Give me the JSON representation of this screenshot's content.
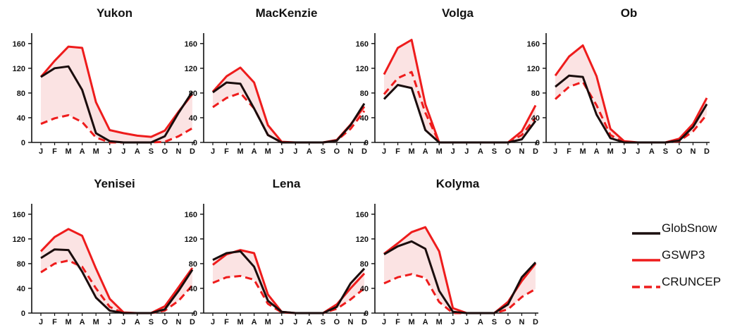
{
  "colors": {
    "globsnow": "#1a0d0d",
    "gswp3": "#ee1c1c",
    "cruncep": "#ee1c1c",
    "envelope": "#fbe3e3"
  },
  "legend": {
    "placement": "bottom-right",
    "items": [
      {
        "label": "GlobSnow",
        "style": "solid-black"
      },
      {
        "label": "GSWP3",
        "style": "solid-red"
      },
      {
        "label": "CRUNCEP",
        "style": "dashed-red"
      }
    ]
  },
  "chart_data": [
    {
      "type": "line",
      "title": "Yukon",
      "categories": [
        "J",
        "F",
        "M",
        "A",
        "M",
        "J",
        "J",
        "A",
        "S",
        "O",
        "N",
        "D"
      ],
      "ylim": [
        0,
        170
      ],
      "yticks": [
        0,
        40,
        80,
        120,
        160
      ],
      "grid": false,
      "series": [
        {
          "name": "GlobSnow",
          "values": [
            106,
            120,
            123,
            85,
            15,
            2,
            0,
            0,
            0,
            10,
            48,
            82
          ]
        },
        {
          "name": "GSWP3",
          "values": [
            106,
            132,
            155,
            153,
            65,
            20,
            15,
            11,
            9,
            19,
            50,
            78
          ]
        },
        {
          "name": "CRUNCEP",
          "values": [
            30,
            39,
            44,
            33,
            8,
            0,
            0,
            0,
            0,
            1,
            10,
            23
          ]
        }
      ]
    },
    {
      "type": "line",
      "title": "MacKenzie",
      "categories": [
        "J",
        "F",
        "M",
        "A",
        "M",
        "J",
        "J",
        "A",
        "S",
        "O",
        "N",
        "D"
      ],
      "ylim": [
        0,
        170
      ],
      "yticks": [
        0,
        40,
        80,
        120,
        160
      ],
      "grid": false,
      "series": [
        {
          "name": "GlobSnow",
          "values": [
            81,
            97,
            95,
            55,
            12,
            0,
            0,
            0,
            0,
            3,
            28,
            63
          ]
        },
        {
          "name": "GSWP3",
          "values": [
            82,
            107,
            121,
            97,
            28,
            1,
            0,
            0,
            0,
            4,
            29,
            58
          ]
        },
        {
          "name": "CRUNCEP",
          "values": [
            57,
            72,
            80,
            55,
            12,
            0,
            0,
            0,
            0,
            3,
            22,
            51
          ]
        }
      ]
    },
    {
      "type": "line",
      "title": "Volga",
      "categories": [
        "J",
        "F",
        "M",
        "A",
        "M",
        "J",
        "J",
        "A",
        "S",
        "O",
        "N",
        "D"
      ],
      "ylim": [
        0,
        170
      ],
      "yticks": [
        0,
        40,
        80,
        120,
        160
      ],
      "grid": false,
      "series": [
        {
          "name": "GlobSnow",
          "values": [
            70,
            93,
            88,
            20,
            0,
            0,
            0,
            0,
            0,
            0,
            5,
            35
          ]
        },
        {
          "name": "GSWP3",
          "values": [
            110,
            153,
            166,
            62,
            0,
            0,
            0,
            0,
            0,
            0,
            18,
            60
          ]
        },
        {
          "name": "CRUNCEP",
          "values": [
            78,
            104,
            114,
            48,
            0,
            0,
            0,
            0,
            0,
            0,
            12,
            40
          ]
        }
      ]
    },
    {
      "type": "line",
      "title": "Ob",
      "categories": [
        "J",
        "F",
        "M",
        "A",
        "M",
        "J",
        "J",
        "A",
        "S",
        "O",
        "N",
        "D"
      ],
      "ylim": [
        0,
        170
      ],
      "yticks": [
        0,
        40,
        80,
        120,
        160
      ],
      "grid": false,
      "series": [
        {
          "name": "GlobSnow",
          "values": [
            90,
            108,
            106,
            45,
            7,
            0,
            0,
            0,
            0,
            3,
            25,
            62
          ]
        },
        {
          "name": "GSWP3",
          "values": [
            108,
            139,
            157,
            107,
            22,
            2,
            0,
            0,
            0,
            6,
            30,
            72
          ]
        },
        {
          "name": "CRUNCEP",
          "values": [
            70,
            90,
            98,
            60,
            12,
            0,
            0,
            0,
            0,
            2,
            18,
            45
          ]
        }
      ]
    },
    {
      "type": "line",
      "title": "Yenisei",
      "categories": [
        "J",
        "F",
        "M",
        "A",
        "M",
        "J",
        "J",
        "A",
        "S",
        "O",
        "N",
        "D"
      ],
      "ylim": [
        0,
        170
      ],
      "yticks": [
        0,
        40,
        80,
        120,
        160
      ],
      "grid": false,
      "series": [
        {
          "name": "GlobSnow",
          "values": [
            89,
            103,
            102,
            67,
            25,
            4,
            0,
            0,
            0,
            6,
            36,
            70
          ]
        },
        {
          "name": "GSWP3",
          "values": [
            100,
            123,
            136,
            125,
            72,
            23,
            1,
            0,
            0,
            11,
            42,
            73
          ]
        },
        {
          "name": "CRUNCEP",
          "values": [
            66,
            80,
            85,
            75,
            40,
            10,
            0,
            0,
            0,
            4,
            20,
            45
          ]
        }
      ]
    },
    {
      "type": "line",
      "title": "Lena",
      "categories": [
        "J",
        "F",
        "M",
        "A",
        "M",
        "J",
        "J",
        "A",
        "S",
        "O",
        "N",
        "D"
      ],
      "ylim": [
        0,
        170
      ],
      "yticks": [
        0,
        40,
        80,
        120,
        160
      ],
      "grid": false,
      "series": [
        {
          "name": "GlobSnow",
          "values": [
            86,
            97,
            100,
            75,
            20,
            2,
            0,
            0,
            0,
            10,
            48,
            72
          ]
        },
        {
          "name": "GSWP3",
          "values": [
            78,
            95,
            102,
            97,
            30,
            2,
            0,
            0,
            0,
            14,
            40,
            64
          ]
        },
        {
          "name": "CRUNCEP",
          "values": [
            49,
            58,
            60,
            54,
            15,
            1,
            0,
            0,
            0,
            7,
            22,
            40
          ]
        }
      ]
    },
    {
      "type": "line",
      "title": "Kolyma",
      "categories": [
        "J",
        "F",
        "M",
        "A",
        "M",
        "J",
        "J",
        "A",
        "S",
        "O",
        "N",
        "D"
      ],
      "ylim": [
        0,
        170
      ],
      "yticks": [
        0,
        40,
        80,
        120,
        160
      ],
      "grid": false,
      "series": [
        {
          "name": "GlobSnow",
          "values": [
            95,
            108,
            116,
            104,
            36,
            2,
            0,
            0,
            0,
            14,
            58,
            82
          ]
        },
        {
          "name": "GSWP3",
          "values": [
            96,
            113,
            131,
            139,
            100,
            8,
            0,
            0,
            0,
            18,
            52,
            80
          ]
        },
        {
          "name": "CRUNCEP",
          "values": [
            48,
            58,
            63,
            57,
            18,
            0,
            0,
            0,
            0,
            6,
            26,
            39
          ]
        }
      ]
    }
  ]
}
